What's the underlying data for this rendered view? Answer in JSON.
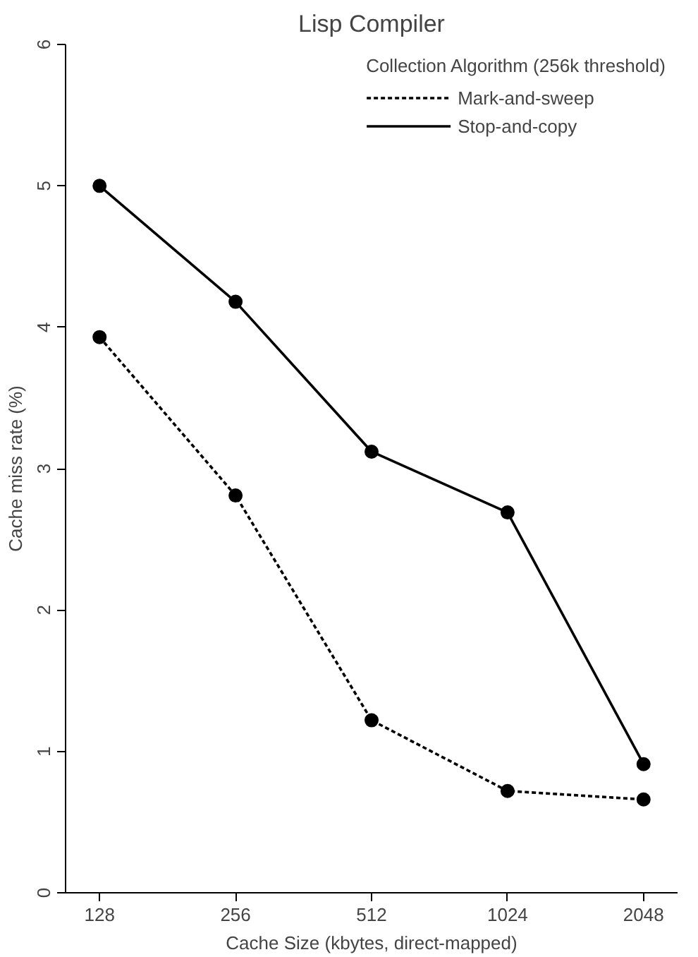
{
  "chart_data": {
    "type": "line",
    "title": "Lisp Compiler",
    "xlabel": "Cache Size (kbytes, direct-mapped)",
    "ylabel": "Cache miss rate (%)",
    "legend_title": "Collection Algorithm (256k threshold)",
    "categories": [
      "128",
      "256",
      "512",
      "1024",
      "2048"
    ],
    "series": [
      {
        "name": "Mark-and-sweep",
        "color": "#000000",
        "line_style": "dashed",
        "values": [
          3.93,
          2.81,
          1.22,
          0.72,
          0.66
        ]
      },
      {
        "name": "Stop-and-copy",
        "color": "#000000",
        "line_style": "solid",
        "values": [
          5.0,
          4.18,
          3.12,
          2.69,
          0.91
        ]
      }
    ],
    "ylim": [
      0,
      6
    ],
    "yticks": [
      0,
      1,
      2,
      3,
      4,
      5,
      6
    ],
    "marker": "circle",
    "grid": false,
    "legend": "top right"
  }
}
